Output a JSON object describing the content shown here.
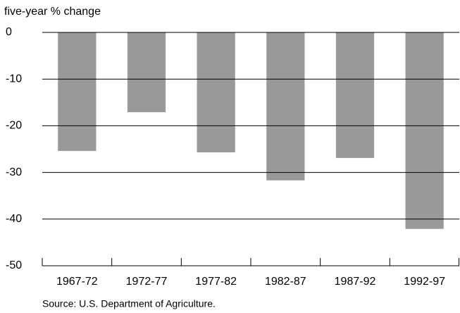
{
  "chart_data": {
    "type": "bar",
    "y_label": "five-year % change",
    "source": "Source: U.S. Department of Agriculture.",
    "categories": [
      "1967-72",
      "1972-77",
      "1977-82",
      "1982-87",
      "1987-92",
      "1992-97"
    ],
    "values": [
      -25.4,
      -17.1,
      -25.7,
      -31.7,
      -26.9,
      -42.1
    ],
    "color": "#999999",
    "ylim": [
      -50,
      0
    ],
    "yticks": [
      0,
      -10,
      -20,
      -30,
      -40,
      -50
    ],
    "grid": true
  }
}
